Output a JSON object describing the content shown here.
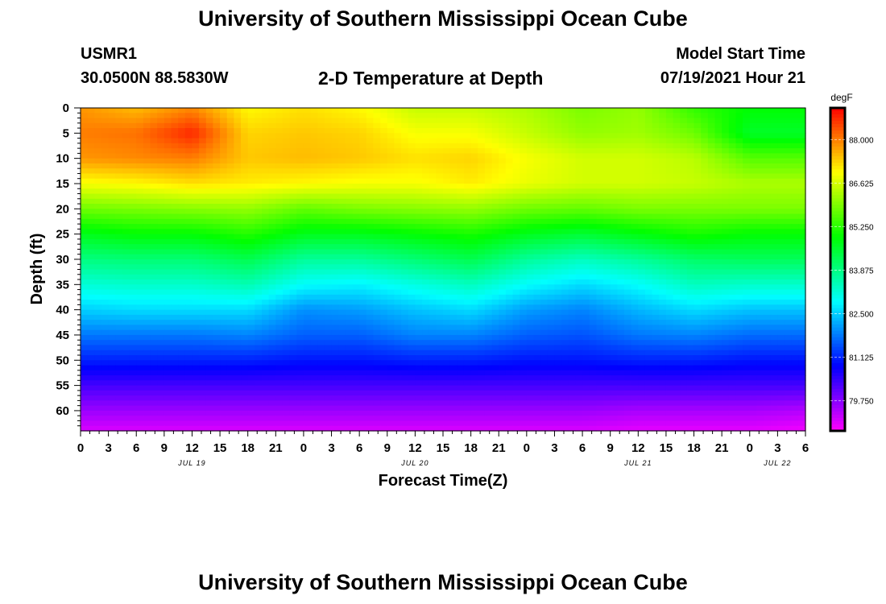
{
  "header": {
    "title": "University of Southern Mississippi Ocean Cube",
    "station_id": "USMR1",
    "coordinates": "30.0500N  88.5830W",
    "subtitle": "2-D Temperature at Depth",
    "model_start_label": "Model Start Time",
    "model_start_value": "07/19/2021 Hour 21"
  },
  "footer": {
    "title": "University of Southern Mississippi Ocean Cube"
  },
  "chart_data": {
    "type": "heatmap",
    "title": "2-D Temperature at Depth",
    "xlabel": "Forecast Time(Z)",
    "ylabel": "Depth (ft)",
    "x_unit": "hours since JUL 19 00Z",
    "xlim": [
      0,
      78
    ],
    "ylim": [
      0,
      64
    ],
    "y_ticks": [
      0,
      5,
      10,
      15,
      20,
      25,
      30,
      35,
      40,
      45,
      50,
      55,
      60
    ],
    "x_tick_labels": [
      "0",
      "3",
      "6",
      "9",
      "12",
      "15",
      "18",
      "21",
      "0",
      "3",
      "6",
      "9",
      "12",
      "15",
      "18",
      "21",
      "0",
      "3",
      "6",
      "9",
      "12",
      "15",
      "18",
      "21",
      "0",
      "3",
      "6"
    ],
    "x_tick_hours": [
      0,
      3,
      6,
      9,
      12,
      15,
      18,
      21,
      24,
      27,
      30,
      33,
      36,
      39,
      42,
      45,
      48,
      51,
      54,
      57,
      60,
      63,
      66,
      69,
      72,
      75,
      78
    ],
    "date_labels": [
      {
        "label": "JUL 19",
        "hour": 12
      },
      {
        "label": "JUL 20",
        "hour": 36
      },
      {
        "label": "JUL 21",
        "hour": 60
      },
      {
        "label": "JUL 22",
        "hour": 75
      }
    ],
    "colorbar": {
      "unit": "degF",
      "min": 78.8,
      "max": 89.0,
      "ticks": [
        88.0,
        86.625,
        85.25,
        83.875,
        82.5,
        81.125,
        79.75
      ],
      "tick_labels": [
        "88.000",
        "86.625",
        "85.250",
        "83.875",
        "82.500",
        "81.125",
        "79.750"
      ]
    },
    "grid_hours": [
      0,
      6,
      12,
      18,
      24,
      30,
      36,
      42,
      48,
      54,
      60,
      66,
      72,
      78
    ],
    "grid_depths": [
      0,
      5,
      10,
      15,
      20,
      25,
      30,
      35,
      40,
      45,
      50,
      55,
      60,
      64
    ],
    "values": [
      [
        87.8,
        87.5,
        87.9,
        87.0,
        87.2,
        87.0,
        86.5,
        86.5,
        86.3,
        85.9,
        86.1,
        85.3,
        84.9,
        84.9
      ],
      [
        88.0,
        88.1,
        88.7,
        87.3,
        87.4,
        87.3,
        86.9,
        86.9,
        86.5,
        86.1,
        86.2,
        85.8,
        84.6,
        84.6
      ],
      [
        87.8,
        87.9,
        88.0,
        87.4,
        87.5,
        87.4,
        87.2,
        87.3,
        86.9,
        86.6,
        86.6,
        86.4,
        85.6,
        85.6
      ],
      [
        86.9,
        87.0,
        87.2,
        87.1,
        87.0,
        86.9,
        86.9,
        87.1,
        86.8,
        86.6,
        86.6,
        86.5,
        86.3,
        86.3
      ],
      [
        85.8,
        85.9,
        86.0,
        86.1,
        85.7,
        85.9,
        86.0,
        86.1,
        85.8,
        85.7,
        85.9,
        85.9,
        85.9,
        85.9
      ],
      [
        84.7,
        84.9,
        84.9,
        85.2,
        84.7,
        84.7,
        84.9,
        85.1,
        84.7,
        84.5,
        84.8,
        85.1,
        84.9,
        84.9
      ],
      [
        83.9,
        84.0,
        84.0,
        84.3,
        83.7,
        83.7,
        84.0,
        84.3,
        83.7,
        83.4,
        83.7,
        84.1,
        84.2,
        84.2
      ],
      [
        83.2,
        83.3,
        83.3,
        83.5,
        82.9,
        82.8,
        83.1,
        83.4,
        82.9,
        82.6,
        82.9,
        83.4,
        83.3,
        83.3
      ],
      [
        82.5,
        82.6,
        82.6,
        82.6,
        82.0,
        82.1,
        82.4,
        82.6,
        82.1,
        81.9,
        82.3,
        82.6,
        82.4,
        82.4
      ],
      [
        81.8,
        81.8,
        81.8,
        81.9,
        81.6,
        81.6,
        81.9,
        81.9,
        81.6,
        81.5,
        81.8,
        81.9,
        81.7,
        81.7
      ],
      [
        81.1,
        81.1,
        81.1,
        81.1,
        81.0,
        81.0,
        81.1,
        81.1,
        81.0,
        81.0,
        81.1,
        81.1,
        81.0,
        81.0
      ],
      [
        80.3,
        80.3,
        80.3,
        80.3,
        80.3,
        80.3,
        80.3,
        80.3,
        80.3,
        80.3,
        80.3,
        80.3,
        80.3,
        80.3
      ],
      [
        79.6,
        79.6,
        79.6,
        79.6,
        79.6,
        79.6,
        79.6,
        79.6,
        79.6,
        79.6,
        79.5,
        79.5,
        79.5,
        79.4
      ],
      [
        79.1,
        79.1,
        79.1,
        79.1,
        79.1,
        79.1,
        79.1,
        79.1,
        79.1,
        79.1,
        79.0,
        79.0,
        79.0,
        78.9
      ]
    ]
  }
}
